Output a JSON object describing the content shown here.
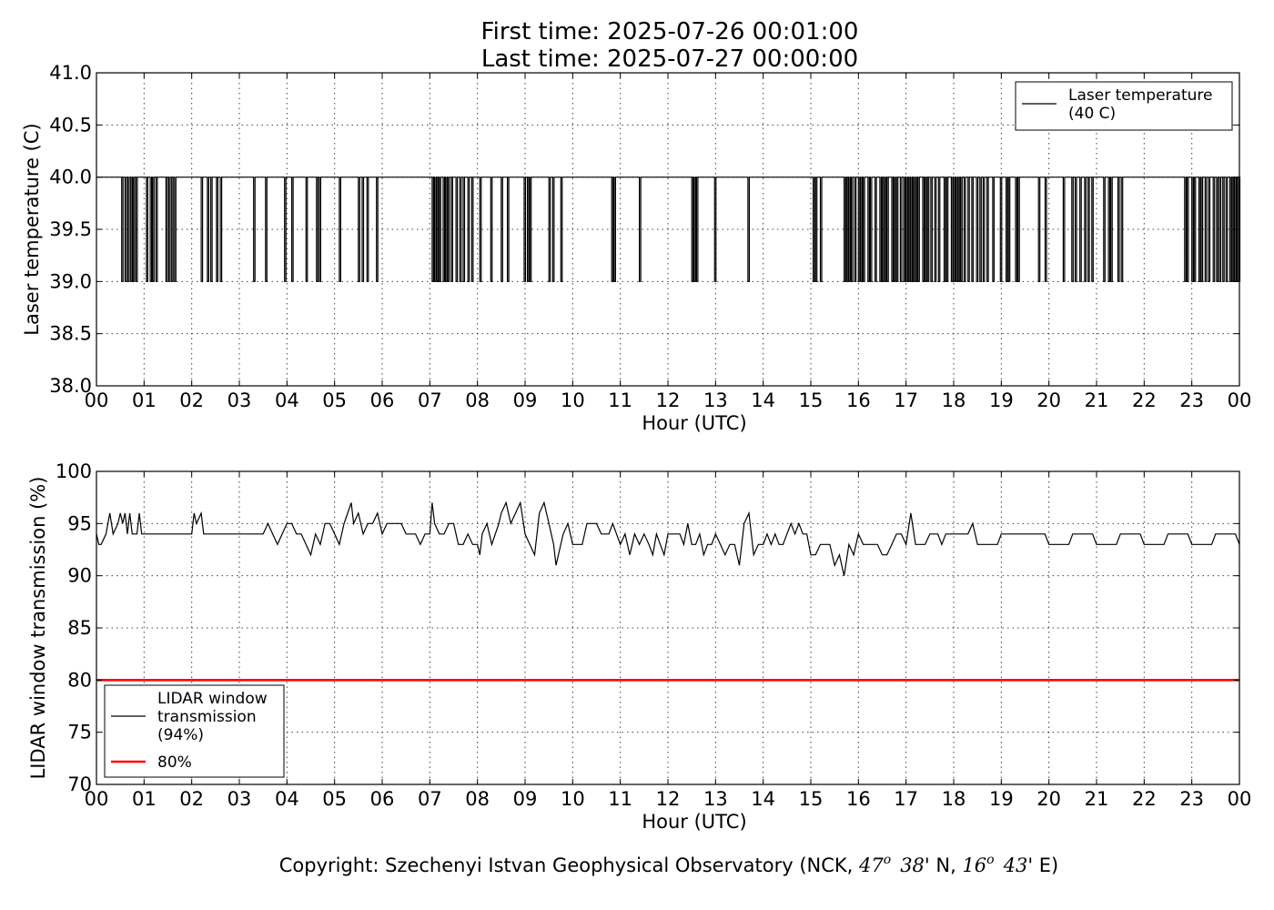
{
  "title_line1": "First time: 2025-07-26 00:01:00",
  "title_line2": "Last time: 2025-07-27 00:00:00",
  "copyright": {
    "prefix": "Copyright: Szechenyi Istvan Geophysical Observatory (NCK, ",
    "lat_deg": "47",
    "lat_min": "38",
    "lat_rest": "' N, ",
    "lon_deg": "16",
    "lon_min": "43",
    "lon_rest": "' E)",
    "degree_mark": "o"
  },
  "colors": {
    "series": "#000000",
    "threshold": "#ff0000"
  },
  "chart_data": [
    {
      "type": "line",
      "ylabel": "Laser temperature (C)",
      "xlabel": "Hour (UTC)",
      "xlim": [
        0,
        24
      ],
      "ylim": [
        38.0,
        41.0
      ],
      "x_tick_labels": [
        "00",
        "01",
        "02",
        "03",
        "04",
        "05",
        "06",
        "07",
        "08",
        "09",
        "10",
        "11",
        "12",
        "13",
        "14",
        "15",
        "16",
        "17",
        "18",
        "19",
        "20",
        "21",
        "22",
        "23",
        "00"
      ],
      "y_ticks": [
        38.0,
        38.5,
        39.0,
        39.5,
        40.0,
        40.5,
        41.0
      ],
      "y_tick_labels": [
        "38.0",
        "38.5",
        "39.0",
        "39.5",
        "40.0",
        "40.5",
        "41.0"
      ],
      "grid": true,
      "legend_position": "top-right",
      "legend": [
        {
          "label": "Laser temperature\n(40 C)",
          "color": "#000000"
        }
      ],
      "series": [
        {
          "name": "Laser temperature\n(40 C)",
          "baseline": 40.0,
          "low_value": 39.0,
          "drops_hours": [
            0.53,
            0.6,
            0.66,
            0.72,
            0.77,
            0.83,
            1.05,
            1.13,
            1.18,
            1.25,
            1.46,
            1.52,
            1.58,
            1.64,
            2.2,
            2.33,
            2.4,
            2.52,
            2.6,
            3.3,
            3.55,
            3.95,
            4.1,
            4.4,
            4.62,
            4.68,
            5.1,
            5.5,
            5.58,
            5.68,
            5.88,
            7.05,
            7.1,
            7.15,
            7.2,
            7.28,
            7.33,
            7.38,
            7.45,
            7.55,
            7.63,
            7.7,
            7.8,
            7.88,
            8.05,
            8.28,
            8.5,
            8.63,
            8.98,
            9.05,
            9.1,
            9.5,
            9.58,
            9.75,
            10.82,
            10.87,
            11.4,
            12.5,
            12.55,
            12.6,
            12.98,
            13.68,
            15.05,
            15.1,
            15.2,
            15.7,
            15.75,
            15.8,
            15.85,
            15.92,
            16.0,
            16.05,
            16.1,
            16.2,
            16.25,
            16.35,
            16.45,
            16.5,
            16.55,
            16.6,
            16.7,
            16.75,
            16.8,
            16.88,
            16.95,
            17.0,
            17.05,
            17.1,
            17.15,
            17.2,
            17.25,
            17.35,
            17.4,
            17.45,
            17.52,
            17.6,
            17.68,
            17.8,
            17.85,
            17.95,
            18.0,
            18.05,
            18.1,
            18.15,
            18.22,
            18.3,
            18.38,
            18.48,
            18.55,
            18.62,
            18.7,
            18.82,
            18.98,
            19.1,
            19.15,
            19.3,
            19.35,
            19.78,
            19.92,
            20.3,
            20.48,
            20.55,
            20.65,
            20.75,
            20.82,
            20.9,
            21.15,
            21.25,
            21.3,
            21.45,
            21.52,
            22.85,
            22.9,
            23.0,
            23.05,
            23.15,
            23.2,
            23.28,
            23.35,
            23.45,
            23.52,
            23.58,
            23.65,
            23.72,
            23.8,
            23.85,
            23.9,
            23.95,
            23.98
          ]
        }
      ]
    },
    {
      "type": "line",
      "ylabel": "LIDAR window transmission (%)",
      "xlabel": "Hour (UTC)",
      "xlim": [
        0,
        24
      ],
      "ylim": [
        70,
        100
      ],
      "x_tick_labels": [
        "00",
        "01",
        "02",
        "03",
        "04",
        "05",
        "06",
        "07",
        "08",
        "09",
        "10",
        "11",
        "12",
        "13",
        "14",
        "15",
        "16",
        "17",
        "18",
        "19",
        "20",
        "21",
        "22",
        "23",
        "00"
      ],
      "y_ticks": [
        70,
        75,
        80,
        85,
        90,
        95,
        100
      ],
      "y_tick_labels": [
        "70",
        "75",
        "80",
        "85",
        "90",
        "95",
        "100"
      ],
      "grid": true,
      "legend_position": "lower-left",
      "legend": [
        {
          "label": "LIDAR window\ntransmission\n(94%)",
          "color": "#000000"
        },
        {
          "label": "80%",
          "color": "#ff0000"
        }
      ],
      "threshold": 80,
      "series": [
        {
          "name": "LIDAR window\ntransmission\n(94%)",
          "x_hours": [
            0.0,
            0.05,
            0.1,
            0.2,
            0.28,
            0.35,
            0.45,
            0.5,
            0.55,
            0.6,
            0.65,
            0.7,
            0.75,
            0.85,
            0.9,
            0.95,
            1.0,
            1.5,
            2.0,
            2.05,
            2.1,
            2.2,
            2.25,
            2.4,
            3.0,
            3.5,
            3.6,
            3.7,
            3.8,
            3.9,
            4.0,
            4.2,
            4.4,
            4.6,
            4.8,
            5.0,
            5.2,
            5.35,
            5.4,
            5.5,
            5.6,
            5.8,
            6.0,
            6.2,
            6.5,
            6.8,
            7.0,
            7.05,
            7.1,
            7.2,
            7.4,
            7.6,
            7.8,
            8.0,
            8.05,
            8.1,
            8.3,
            8.45,
            8.5,
            8.6,
            8.7,
            8.8,
            8.9,
            9.0,
            9.1,
            9.3,
            9.4,
            9.5,
            9.6,
            9.65,
            9.8,
            10.0,
            10.3,
            10.6,
            11.0,
            11.3,
            11.6,
            12.0,
            12.5,
            13.0,
            13.2,
            13.3,
            13.5,
            13.6,
            13.8,
            14.0,
            14.5,
            15.0,
            15.2,
            15.5,
            15.8,
            16.0,
            16.2,
            16.5,
            16.8,
            17.0,
            17.1,
            17.2,
            17.5,
            18.0,
            18.3,
            18.6,
            19.0,
            19.5,
            20.0,
            20.5,
            21.0,
            21.5,
            22.0,
            22.5,
            23.0,
            23.5,
            24.0
          ],
          "y_percent": [
            94,
            93,
            93,
            94,
            96,
            94,
            95,
            96,
            95,
            96,
            94,
            96,
            94,
            94,
            96,
            94,
            94,
            94,
            94,
            96,
            95,
            96,
            94,
            94,
            94,
            94,
            95,
            94,
            93,
            94,
            95,
            94,
            93,
            94,
            95,
            94,
            95,
            97,
            95,
            96,
            94,
            95,
            94,
            95,
            94,
            93,
            94,
            97,
            95,
            94,
            95,
            93,
            94,
            93,
            92,
            94,
            93,
            95,
            96,
            97,
            95,
            96,
            97,
            94,
            93,
            96,
            97,
            95,
            93,
            91,
            94,
            93,
            95,
            94,
            93,
            94,
            93,
            94,
            93,
            94,
            92,
            93,
            91,
            95,
            92,
            93,
            94,
            92,
            93,
            91,
            93,
            94,
            93,
            92,
            94,
            93,
            96,
            93,
            94,
            94,
            94,
            93,
            94,
            94,
            93,
            94,
            93,
            94,
            93,
            94,
            93,
            94,
            93
          ]
        },
        {
          "name": "80%",
          "values": [
            80,
            80
          ]
        }
      ]
    }
  ]
}
